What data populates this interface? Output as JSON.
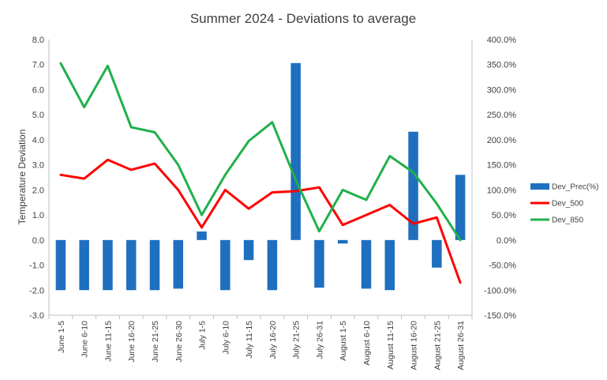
{
  "chart_data": {
    "type": "bar",
    "title": "Summer 2024 - Deviations to average",
    "ylabel": "Temperature  Deviation",
    "y2label": "",
    "ylim": [
      -3.0,
      8.0
    ],
    "y2lim": [
      -150.0,
      400.0
    ],
    "yticks": [
      "8.0",
      "7.0",
      "6.0",
      "5.0",
      "4.0",
      "3.0",
      "2.0",
      "1.0",
      "0.0",
      "-1.0",
      "-2.0",
      "-3.0"
    ],
    "y2ticks": [
      "400.0%",
      "350.0%",
      "300.0%",
      "250.0%",
      "200.0%",
      "150.0%",
      "100.0%",
      "50.0%",
      "0.0%",
      "-50.0%",
      "-100.0%",
      "-150.0%"
    ],
    "grid": false,
    "legend_position": "right",
    "categories": [
      "June 1-5",
      "June 6-10",
      "June 11-15",
      "June 16-20",
      "June 21-25",
      "June 26-30",
      "July 1-5",
      "July 6-10",
      "July 11-15",
      "July 16-20",
      "July 21-25",
      "July 26-31",
      "August 1-5",
      "August 6-10",
      "August 11-15",
      "August 16-20",
      "August 21-25",
      "August 26-31"
    ],
    "series": [
      {
        "name": "Dev_Prec(%)",
        "type": "bar",
        "axis": "right",
        "color": "#1f6fbf",
        "values": [
          -100,
          -100,
          -100,
          -100,
          -100,
          -97,
          17,
          -100,
          -40,
          -100,
          353,
          -95,
          -7,
          -97,
          -100,
          216,
          -55,
          130
        ]
      },
      {
        "name": "Dev_500",
        "type": "line",
        "axis": "left",
        "color": "#ff0000",
        "values": [
          2.6,
          2.45,
          3.2,
          2.8,
          3.05,
          2.0,
          0.5,
          2.0,
          1.25,
          1.9,
          1.95,
          2.1,
          0.6,
          1.0,
          1.4,
          0.65,
          0.9,
          -1.7
        ]
      },
      {
        "name": "Dev_850",
        "type": "line",
        "axis": "left",
        "color": "#21b04b",
        "values": [
          7.05,
          5.3,
          6.95,
          4.5,
          4.3,
          3.0,
          1.0,
          2.6,
          3.95,
          4.7,
          2.4,
          0.35,
          2.0,
          1.6,
          3.35,
          2.7,
          1.45,
          0.0
        ]
      }
    ]
  }
}
